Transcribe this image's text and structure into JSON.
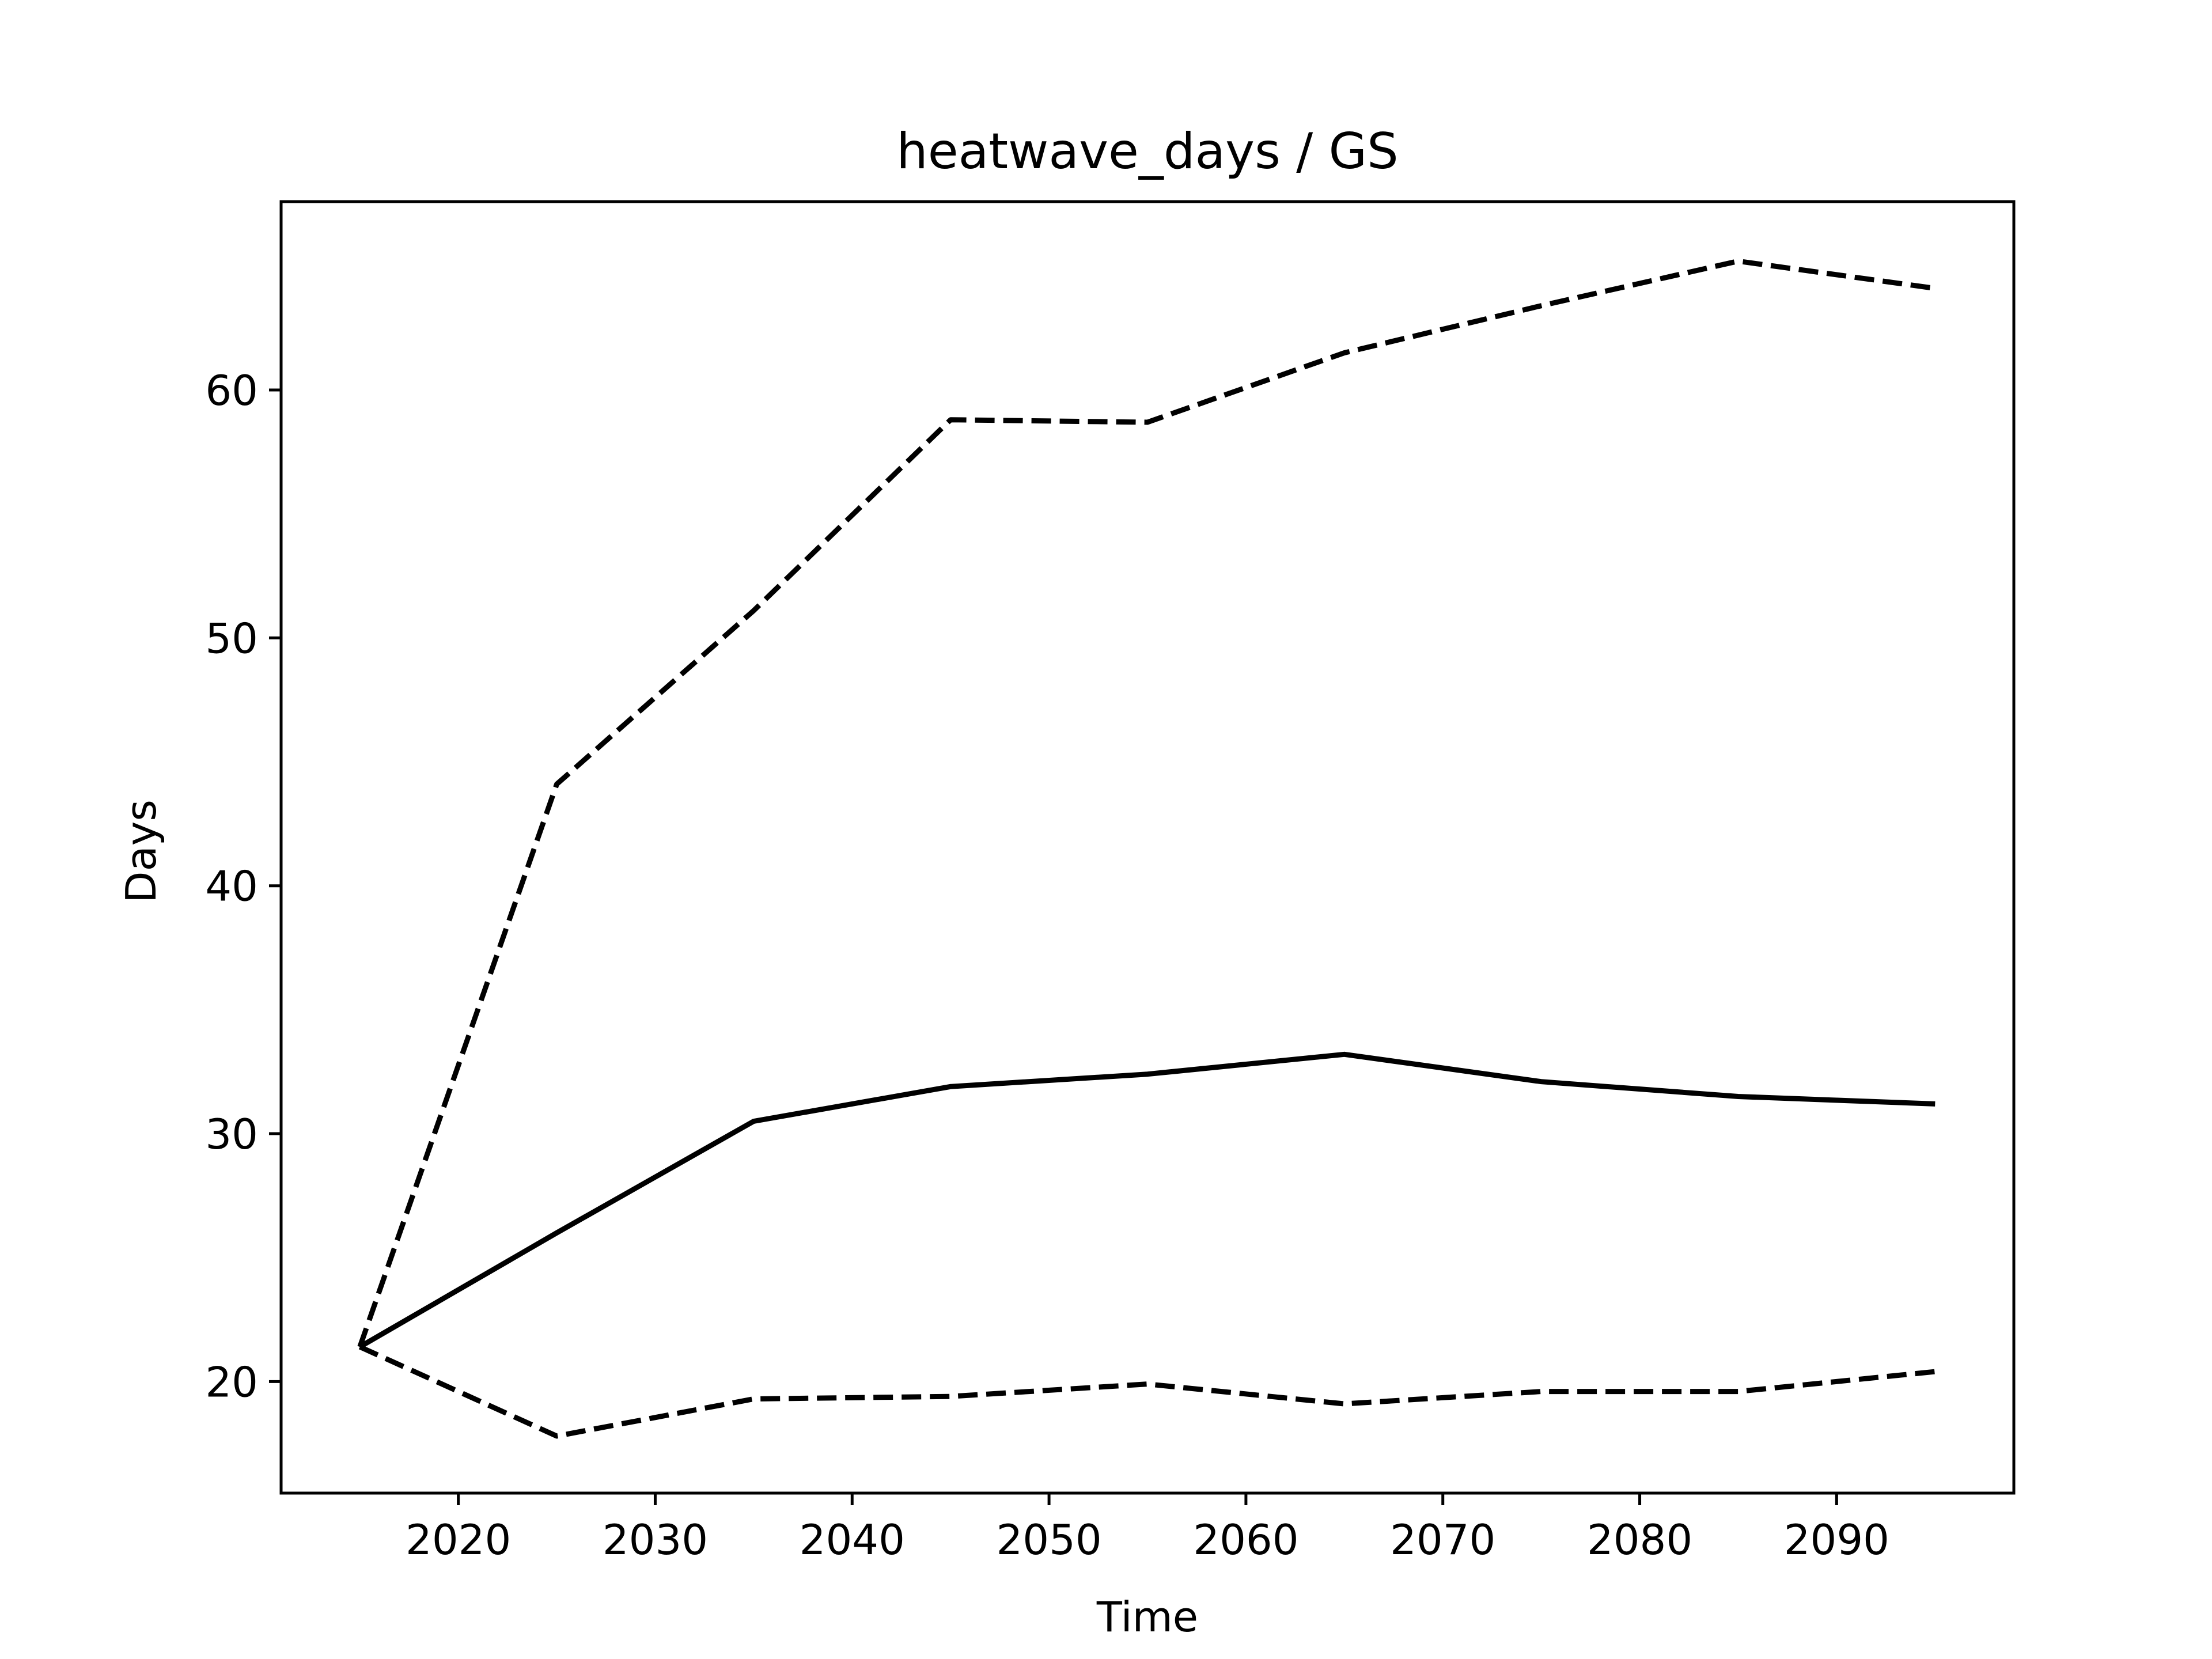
{
  "chart_data": {
    "type": "line",
    "title": "heatwave_days / GS",
    "xlabel": "Time",
    "ylabel": "Days",
    "x": [
      2015,
      2025,
      2035,
      2045,
      2055,
      2065,
      2075,
      2085,
      2095
    ],
    "xlim": [
      2011,
      2099
    ],
    "ylim": [
      15.5,
      67.6
    ],
    "xticks": [
      2020,
      2030,
      2040,
      2050,
      2060,
      2070,
      2080,
      2090
    ],
    "yticks": [
      20,
      30,
      40,
      50,
      60
    ],
    "xtick_labels": [
      "2020",
      "2030",
      "2040",
      "2050",
      "2060",
      "2070",
      "2080",
      "2090"
    ],
    "ytick_labels": [
      "20",
      "30",
      "40",
      "50",
      "60"
    ],
    "grid": false,
    "legend": "none",
    "series": [
      {
        "style": "dashed",
        "color": "#000000",
        "values": [
          21.4,
          44.1,
          51.1,
          58.8,
          58.7,
          61.5,
          63.4,
          65.2,
          64.1
        ]
      },
      {
        "style": "solid",
        "color": "#000000",
        "values": [
          21.4,
          26.0,
          30.5,
          31.9,
          32.4,
          33.2,
          32.1,
          31.5,
          31.2
        ]
      },
      {
        "style": "dashed",
        "color": "#000000",
        "values": [
          21.4,
          17.8,
          19.3,
          19.4,
          19.9,
          19.1,
          19.6,
          19.6,
          20.4
        ]
      }
    ]
  }
}
